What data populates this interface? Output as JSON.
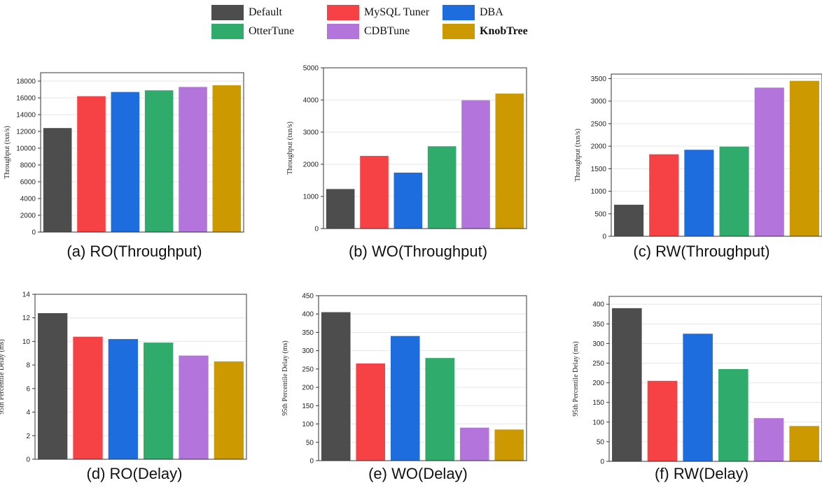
{
  "legend": [
    {
      "name": "Default",
      "color": "#4d4d4d"
    },
    {
      "name": "MySQL Tuner",
      "color": "#f64244"
    },
    {
      "name": "DBA",
      "color": "#1e6ddf"
    },
    {
      "name": "OtterTune",
      "color": "#2fab6b"
    },
    {
      "name": "CDBTune",
      "color": "#b374dc"
    },
    {
      "name": "KnobTree",
      "color": "#cc9900"
    }
  ],
  "chart_data": [
    {
      "type": "bar",
      "caption": "(a) RO(Throughput)",
      "ylabel": "Throughput (txn/s)",
      "ylim": [
        0,
        19000
      ],
      "yticks": [
        0,
        2000,
        4000,
        6000,
        8000,
        10000,
        12000,
        14000,
        16000,
        18000
      ],
      "grid": true,
      "series": [
        {
          "name": "Default",
          "value": 12400
        },
        {
          "name": "MySQL Tuner",
          "value": 16200
        },
        {
          "name": "DBA",
          "value": 16700
        },
        {
          "name": "OtterTune",
          "value": 16900
        },
        {
          "name": "CDBTune",
          "value": 17300
        },
        {
          "name": "KnobTree",
          "value": 17500
        }
      ]
    },
    {
      "type": "bar",
      "caption": "(b) WO(Throughput)",
      "ylabel": "Throughput (txn/s)",
      "ylim": [
        0,
        5000
      ],
      "yticks": [
        0,
        1000,
        2000,
        3000,
        4000,
        5000
      ],
      "grid": true,
      "series": [
        {
          "name": "Default",
          "value": 1230
        },
        {
          "name": "MySQL Tuner",
          "value": 2260
        },
        {
          "name": "DBA",
          "value": 1740
        },
        {
          "name": "OtterTune",
          "value": 2560
        },
        {
          "name": "CDBTune",
          "value": 3990
        },
        {
          "name": "KnobTree",
          "value": 4200
        }
      ]
    },
    {
      "type": "bar",
      "caption": "(c) RW(Throughput)",
      "ylabel": "Throughput (txn/s)",
      "ylim": [
        0,
        3600
      ],
      "yticks": [
        0,
        500,
        1000,
        1500,
        2000,
        2500,
        3000,
        3500
      ],
      "grid": true,
      "series": [
        {
          "name": "Default",
          "value": 700
        },
        {
          "name": "MySQL Tuner",
          "value": 1820
        },
        {
          "name": "DBA",
          "value": 1920
        },
        {
          "name": "OtterTune",
          "value": 1990
        },
        {
          "name": "CDBTune",
          "value": 3300
        },
        {
          "name": "KnobTree",
          "value": 3450
        }
      ]
    },
    {
      "type": "bar",
      "caption": "(d) RO(Delay)",
      "ylabel": "95th Percentile Delay (ms)",
      "ylim": [
        0,
        14
      ],
      "yticks": [
        0,
        2,
        4,
        6,
        8,
        10,
        12,
        14
      ],
      "grid": true,
      "series": [
        {
          "name": "Default",
          "value": 12.4
        },
        {
          "name": "MySQL Tuner",
          "value": 10.4
        },
        {
          "name": "DBA",
          "value": 10.2
        },
        {
          "name": "OtterTune",
          "value": 9.9
        },
        {
          "name": "CDBTune",
          "value": 8.8
        },
        {
          "name": "KnobTree",
          "value": 8.3
        }
      ]
    },
    {
      "type": "bar",
      "caption": "(e) WO(Delay)",
      "ylabel": "95th Percentile Delay (ms)",
      "ylim": [
        0,
        450
      ],
      "yticks": [
        0,
        50,
        100,
        150,
        200,
        250,
        300,
        350,
        400,
        450
      ],
      "grid": true,
      "series": [
        {
          "name": "Default",
          "value": 405
        },
        {
          "name": "MySQL Tuner",
          "value": 265
        },
        {
          "name": "DBA",
          "value": 340
        },
        {
          "name": "OtterTune",
          "value": 280
        },
        {
          "name": "CDBTune",
          "value": 90
        },
        {
          "name": "KnobTree",
          "value": 85
        }
      ]
    },
    {
      "type": "bar",
      "caption": "(f) RW(Delay)",
      "ylabel": "95th Percentile Delay (ms)",
      "ylim": [
        0,
        420
      ],
      "yticks": [
        0,
        50,
        100,
        150,
        200,
        250,
        300,
        350,
        400
      ],
      "grid": true,
      "series": [
        {
          "name": "Default",
          "value": 390
        },
        {
          "name": "MySQL Tuner",
          "value": 205
        },
        {
          "name": "DBA",
          "value": 325
        },
        {
          "name": "OtterTune",
          "value": 235
        },
        {
          "name": "CDBTune",
          "value": 110
        },
        {
          "name": "KnobTree",
          "value": 90
        }
      ]
    }
  ]
}
